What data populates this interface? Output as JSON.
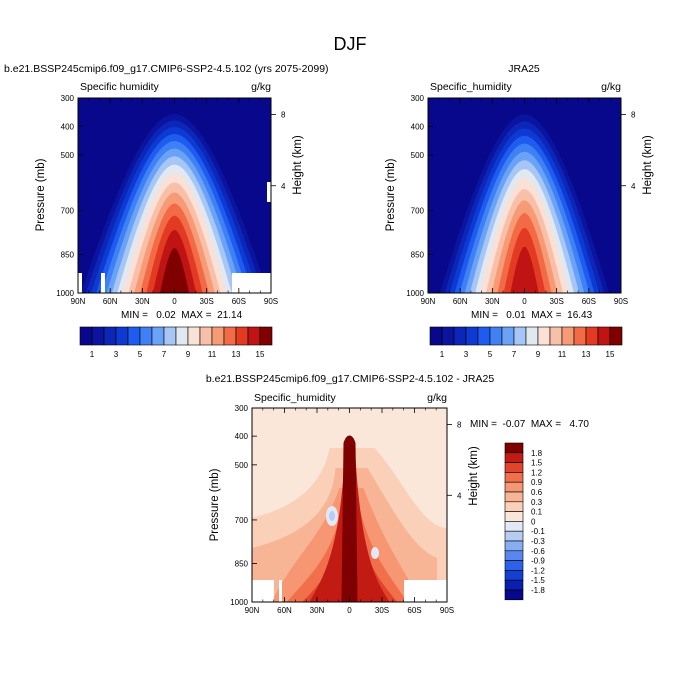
{
  "title": "DJF",
  "colors": {
    "scale_abs": [
      "#08088c",
      "#0a149e",
      "#0c26b8",
      "#0e3ad4",
      "#1e5cf0",
      "#3f80f5",
      "#6aa2f7",
      "#a6c6f5",
      "#e2e8f0",
      "#fbe0d6",
      "#f9c0a9",
      "#f79b77",
      "#f26a46",
      "#e23a23",
      "#c01414",
      "#800000"
    ],
    "scale_diff": [
      "#08088c",
      "#0a1fb0",
      "#1240d2",
      "#2c62ea",
      "#5887ef",
      "#88aef2",
      "#b7ccf2",
      "#e3e9f4",
      "#fbe6da",
      "#fad0b8",
      "#f8b595",
      "#f69672",
      "#f16f4b",
      "#e2432b",
      "#c11b14",
      "#7f0000"
    ]
  },
  "chart_data": [
    {
      "id": "model",
      "type": "contour",
      "title": "b.e21.BSSP245cmip6.f09_g17.CMIP6-SSP2-4.5.102 (yrs 2075-2099)",
      "left_label": "Specific humidity",
      "right_label": "g/kg",
      "ylabel": "Pressure (mb)",
      "ylabel_right": "Height (km)",
      "pressure_ticks": [
        "300",
        "400",
        "500",
        "700",
        "850",
        "1000"
      ],
      "height_ticks": [
        "8",
        "4"
      ],
      "lat_ticks": [
        "90N",
        "60N",
        "30N",
        "0",
        "30S",
        "60S",
        "90S"
      ],
      "min": "0.02",
      "max": "21.14",
      "stats_text": "MIN =   0.02  MAX =  21.14",
      "colorbar_labels": [
        "1",
        "3",
        "5",
        "7",
        "9",
        "11",
        "13",
        "15"
      ],
      "peak_level": 16,
      "spread": 1.0
    },
    {
      "id": "obs",
      "type": "contour",
      "title": "JRA25",
      "left_label": "Specific_humidity",
      "right_label": "g/kg",
      "ylabel": "Pressure (mb)",
      "ylabel_right": "Height (km)",
      "pressure_ticks": [
        "300",
        "400",
        "500",
        "700",
        "850",
        "1000"
      ],
      "height_ticks": [
        "8",
        "4"
      ],
      "lat_ticks": [
        "90N",
        "60N",
        "30N",
        "0",
        "30S",
        "60S",
        "90S"
      ],
      "min": "0.01",
      "max": "16.43",
      "stats_text": "MIN =   0.01  MAX =  16.43",
      "colorbar_labels": [
        "1",
        "3",
        "5",
        "7",
        "9",
        "11",
        "13",
        "15"
      ],
      "peak_level": 15,
      "spread": 0.9
    },
    {
      "id": "diff",
      "type": "contour",
      "title": "b.e21.BSSP245cmip6.f09_g17.CMIP6-SSP2-4.5.102 - JRA25",
      "left_label": "Specific_humidity",
      "right_label": "g/kg",
      "ylabel": "Pressure (mb)",
      "ylabel_right": "Height (km)",
      "pressure_ticks": [
        "300",
        "400",
        "500",
        "700",
        "850",
        "1000"
      ],
      "height_ticks": [
        "8",
        "4"
      ],
      "lat_ticks": [
        "90N",
        "60N",
        "30N",
        "0",
        "30S",
        "60S",
        "90S"
      ],
      "min": "-0.07",
      "max": "4.70",
      "stats_text": "MIN =  -0.07  MAX =   4.70",
      "colorbar_labels": [
        "1.8",
        "1.5",
        "1.2",
        "0.9",
        "0.6",
        "0.3",
        "0.1",
        "0",
        "-0.1",
        "-0.3",
        "-0.6",
        "-0.9",
        "-1.2",
        "-1.5",
        "-1.8"
      ]
    }
  ]
}
